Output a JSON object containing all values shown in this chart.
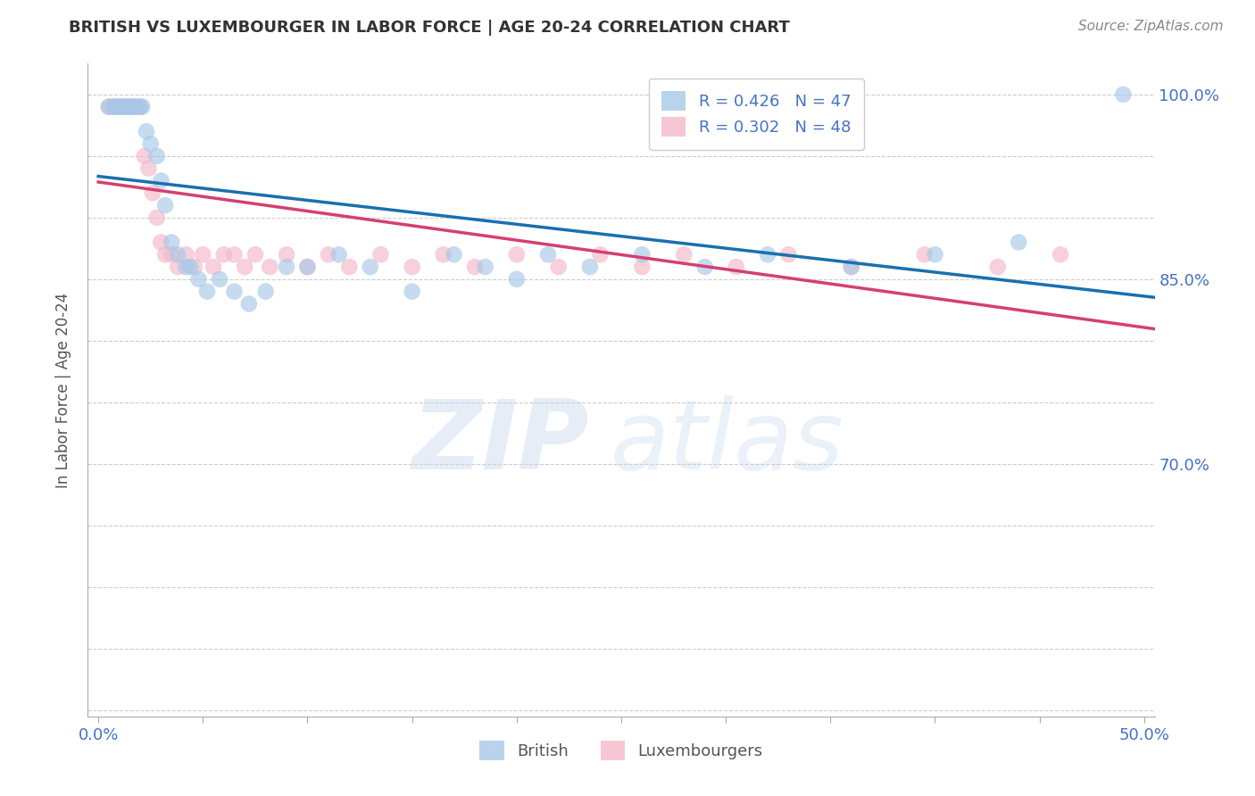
{
  "title": "BRITISH VS LUXEMBOURGER IN LABOR FORCE | AGE 20-24 CORRELATION CHART",
  "source": "Source: ZipAtlas.com",
  "ylabel": "In Labor Force | Age 20-24",
  "xlim": [
    -0.005,
    0.505
  ],
  "ylim": [
    0.495,
    1.025
  ],
  "xtick_positions": [
    0.0,
    0.05,
    0.1,
    0.15,
    0.2,
    0.25,
    0.3,
    0.35,
    0.4,
    0.45,
    0.5
  ],
  "xtick_labels_show": {
    "0.0": "0.0%",
    "0.5": "50.0%"
  },
  "ytick_positions": [
    0.5,
    0.55,
    0.6,
    0.65,
    0.7,
    0.75,
    0.8,
    0.85,
    0.9,
    0.95,
    1.0
  ],
  "ytick_labels": [
    "",
    "",
    "",
    "",
    "70.0%",
    "",
    "",
    "85.0%",
    "",
    "",
    "100.0%"
  ],
  "british_color": "#a8c8e8",
  "luxembourger_color": "#f4b8c8",
  "british_line_color": "#1a6faf",
  "luxembourger_line_color": "#d44070",
  "legend_british_label": "British",
  "legend_luxembourger_label": "Luxembourgers",
  "R_british": 0.426,
  "N_british": 47,
  "R_luxembourger": 0.302,
  "N_luxembourger": 48,
  "british_x": [
    0.005,
    0.007,
    0.008,
    0.01,
    0.01,
    0.011,
    0.012,
    0.013,
    0.015,
    0.015,
    0.016,
    0.017,
    0.018,
    0.02,
    0.021,
    0.023,
    0.025,
    0.028,
    0.03,
    0.032,
    0.035,
    0.038,
    0.042,
    0.044,
    0.048,
    0.052,
    0.058,
    0.065,
    0.072,
    0.08,
    0.09,
    0.1,
    0.115,
    0.13,
    0.15,
    0.17,
    0.185,
    0.2,
    0.215,
    0.235,
    0.26,
    0.29,
    0.32,
    0.36,
    0.4,
    0.44,
    0.49
  ],
  "british_y": [
    0.99,
    0.99,
    0.99,
    0.99,
    0.99,
    0.99,
    0.99,
    0.99,
    0.99,
    0.99,
    0.99,
    0.99,
    0.99,
    0.99,
    0.99,
    0.97,
    0.96,
    0.95,
    0.93,
    0.91,
    0.88,
    0.87,
    0.86,
    0.86,
    0.85,
    0.84,
    0.85,
    0.84,
    0.83,
    0.84,
    0.86,
    0.86,
    0.87,
    0.86,
    0.84,
    0.87,
    0.86,
    0.85,
    0.87,
    0.86,
    0.87,
    0.86,
    0.87,
    0.86,
    0.87,
    0.88,
    1.0
  ],
  "luxembourger_x": [
    0.005,
    0.007,
    0.008,
    0.01,
    0.01,
    0.011,
    0.012,
    0.013,
    0.015,
    0.016,
    0.018,
    0.02,
    0.022,
    0.024,
    0.026,
    0.028,
    0.03,
    0.032,
    0.035,
    0.038,
    0.042,
    0.046,
    0.05,
    0.055,
    0.06,
    0.065,
    0.07,
    0.075,
    0.082,
    0.09,
    0.1,
    0.11,
    0.12,
    0.135,
    0.15,
    0.165,
    0.18,
    0.2,
    0.22,
    0.24,
    0.26,
    0.28,
    0.305,
    0.33,
    0.36,
    0.395,
    0.43,
    0.46
  ],
  "luxembourger_y": [
    0.99,
    0.99,
    0.99,
    0.99,
    0.99,
    0.99,
    0.99,
    0.99,
    0.99,
    0.99,
    0.99,
    0.99,
    0.95,
    0.94,
    0.92,
    0.9,
    0.88,
    0.87,
    0.87,
    0.86,
    0.87,
    0.86,
    0.87,
    0.86,
    0.87,
    0.87,
    0.86,
    0.87,
    0.86,
    0.87,
    0.86,
    0.87,
    0.86,
    0.87,
    0.86,
    0.87,
    0.86,
    0.87,
    0.86,
    0.87,
    0.86,
    0.87,
    0.86,
    0.87,
    0.86,
    0.87,
    0.86,
    0.87
  ],
  "watermark_zip": "ZIP",
  "watermark_atlas": "atlas",
  "background_color": "#ffffff",
  "grid_color": "#cccccc",
  "tick_color": "#4472c4",
  "title_color": "#333333",
  "source_color": "#888888",
  "ylabel_color": "#555555"
}
